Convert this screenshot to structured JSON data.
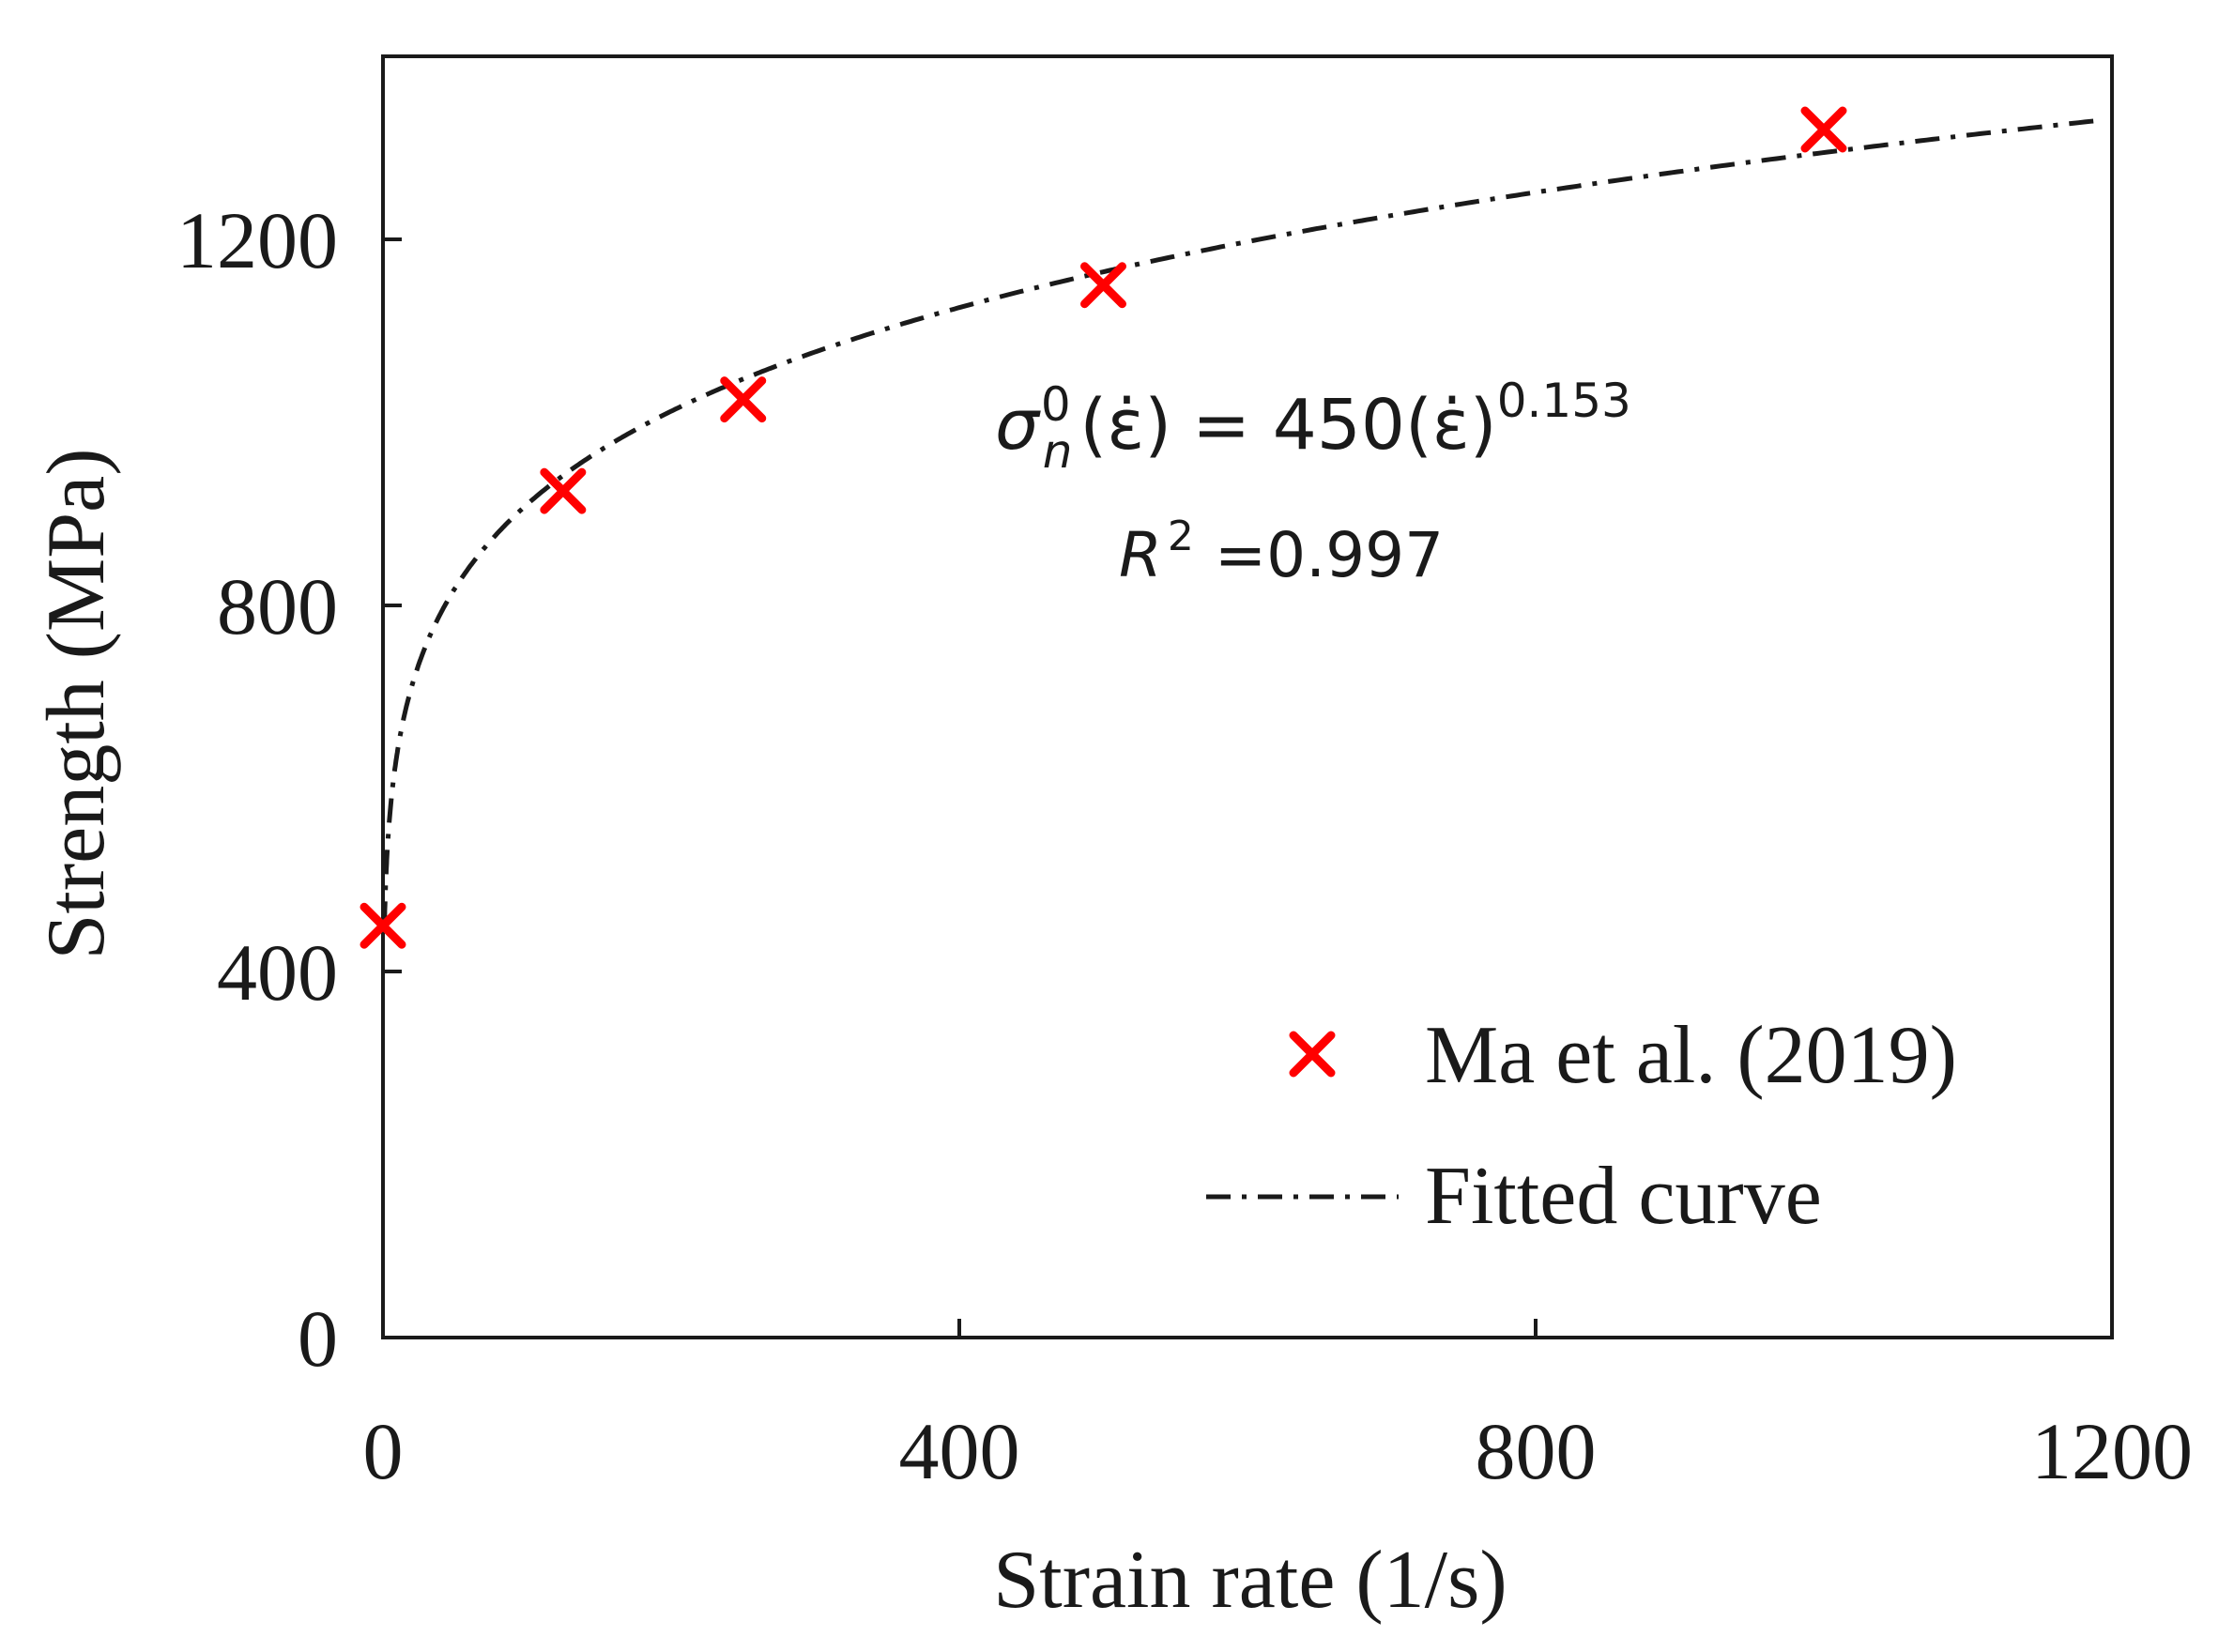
{
  "chart_data": {
    "type": "scatter",
    "title": "",
    "xlabel": "Strain rate (1/s)",
    "ylabel": "Strength (MPa)",
    "xlim": [
      0,
      1200
    ],
    "ylim": [
      0,
      1400
    ],
    "xticks": [
      "0",
      "400",
      "800",
      "1200"
    ],
    "yticks": [
      "0",
      "400",
      "800",
      "1200"
    ],
    "xtick_values": [
      0,
      400,
      800,
      1200
    ],
    "ytick_values": [
      0,
      400,
      800,
      1200
    ],
    "series": [
      {
        "name": "Ma et al. (2019)",
        "kind": "scatter",
        "marker": "x",
        "color": "#ff0000",
        "x": [
          0.0001,
          125,
          250,
          500,
          1000
        ],
        "y": [
          450,
          925,
          1025,
          1150,
          1320
        ]
      },
      {
        "name": "Fitted curve",
        "kind": "line",
        "style": "dash-dot",
        "color": "#1a1a1a",
        "coefficient": 450,
        "exponent": 0.153,
        "x_range": [
          1,
          1190
        ]
      }
    ],
    "annotations": {
      "equation": {
        "sigma": "σ",
        "sub": "n",
        "sup0": "0",
        "lhs_arg": "(ε̇)",
        "rhs": "= 450(ε̇)",
        "rhs_sup": "0.153"
      },
      "r2": {
        "r": "R",
        "sup": "2",
        "value": "=0.997"
      }
    },
    "legend": {
      "position": "bottom-right"
    }
  }
}
